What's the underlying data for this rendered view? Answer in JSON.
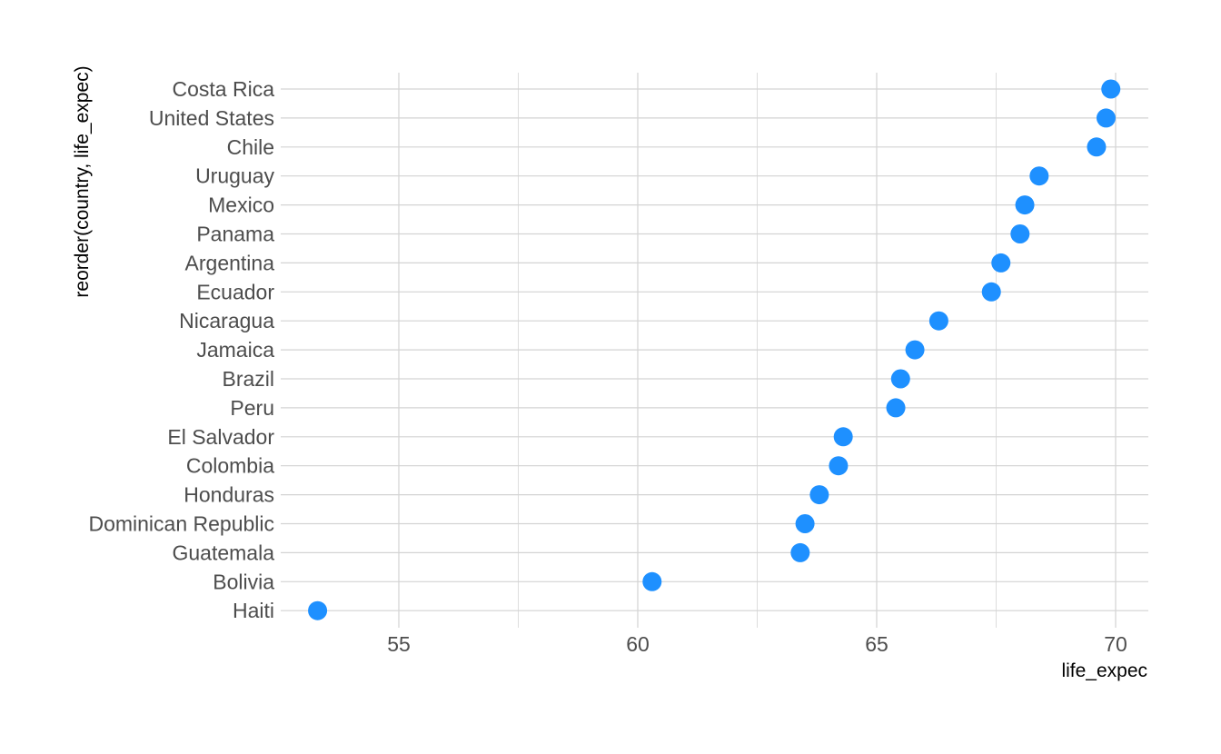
{
  "chart_data": {
    "type": "scatter",
    "xlabel": "life_expec",
    "ylabel": "reorder(country, life_expec)",
    "xlim": [
      52.7,
      70.8
    ],
    "x_ticks": [
      55,
      60,
      65,
      70
    ],
    "x_tick_labels": [
      "55",
      "60",
      "65",
      "70"
    ],
    "grid": true,
    "point_color": "#1e90ff",
    "categories": [
      "Costa Rica",
      "United States",
      "Chile",
      "Uruguay",
      "Mexico",
      "Panama",
      "Argentina",
      "Ecuador",
      "Nicaragua",
      "Jamaica",
      "Brazil",
      "Peru",
      "El Salvador",
      "Colombia",
      "Honduras",
      "Dominican Republic",
      "Guatemala",
      "Bolivia",
      "Haiti"
    ],
    "values": [
      69.9,
      69.8,
      69.6,
      68.4,
      68.1,
      68.0,
      67.6,
      67.4,
      66.3,
      65.8,
      65.5,
      65.4,
      64.3,
      64.2,
      63.8,
      63.5,
      63.4,
      60.3,
      53.3
    ]
  }
}
